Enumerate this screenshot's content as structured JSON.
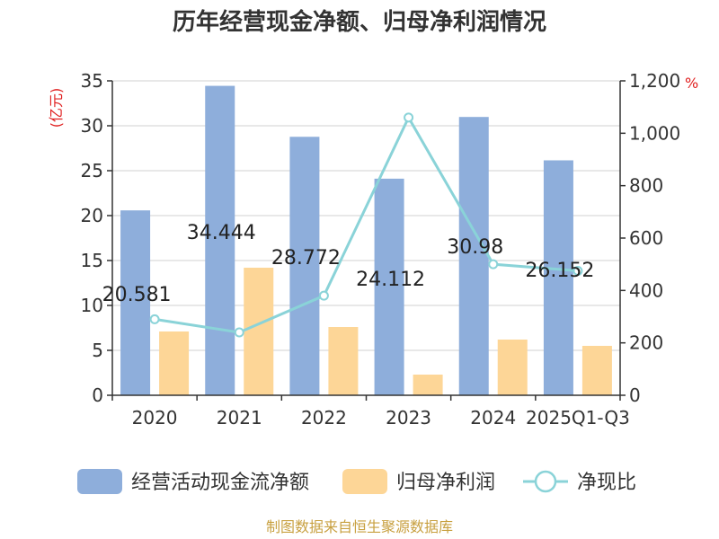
{
  "chart_data": {
    "type": "bar",
    "title": "历年经营现金净额、归母净利润情况",
    "categories": [
      "2020",
      "2021",
      "2022",
      "2023",
      "2024",
      "2025Q1-Q3"
    ],
    "series": [
      {
        "name": "经营活动现金流净额",
        "type": "bar",
        "axis": "left",
        "values": [
          20.581,
          34.444,
          28.772,
          24.112,
          30.98,
          26.152
        ],
        "color": "#8eaedb"
      },
      {
        "name": "归母净利润",
        "type": "bar",
        "axis": "left",
        "values": [
          7.1,
          14.2,
          7.6,
          2.3,
          6.2,
          5.5
        ],
        "color": "#fdd697"
      },
      {
        "name": "净现比",
        "type": "line",
        "axis": "right",
        "values": [
          290,
          240,
          380,
          1060,
          500,
          475
        ],
        "color": "#8ad3d8"
      }
    ],
    "data_labels": [
      "20.581",
      "34.444",
      "28.772",
      "24.112",
      "30.98",
      "26.152"
    ],
    "y_left": {
      "unit": "(亿元)",
      "ylim": [
        0,
        35
      ],
      "ticks": [
        "0",
        "5",
        "10",
        "15",
        "20",
        "25",
        "30",
        "35"
      ]
    },
    "y_right": {
      "unit": "%",
      "ylim": [
        0,
        1200
      ],
      "ticks": [
        "0",
        "200",
        "400",
        "600",
        "800",
        "1,000",
        "1,200"
      ]
    },
    "grid": true,
    "legend_position": "bottom"
  },
  "source": "制图数据来自恒生聚源数据库"
}
